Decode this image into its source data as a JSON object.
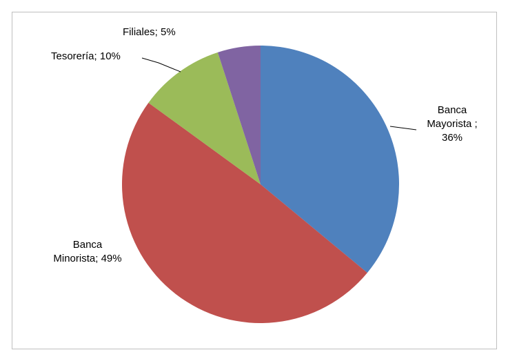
{
  "chart_data": {
    "type": "pie",
    "values": [
      36,
      49,
      10,
      5
    ],
    "value_labels": [
      "Banca Mayorista ; 36%",
      "Banca Minorista; 49%",
      "Tesorería; 10%",
      "Filiales; 5%"
    ],
    "colors": [
      "#4f81bd",
      "#c0504d",
      "#9bbb59",
      "#8064a2"
    ]
  }
}
